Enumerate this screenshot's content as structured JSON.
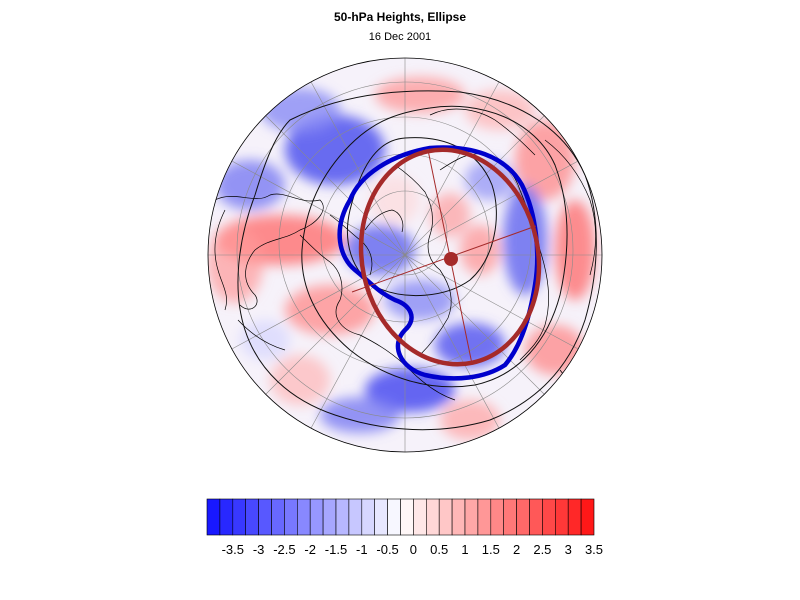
{
  "title": "50-hPa Heights, Ellipse",
  "date": "16 Dec 2001",
  "colorbar": {
    "labels": [
      "-3.5",
      "-3",
      "-2.5",
      "-2",
      "-1.5",
      "-1",
      "-0.5",
      "0",
      "0.5",
      "1",
      "1.5",
      "2",
      "2.5",
      "3",
      "3.5"
    ],
    "low_color": "#1010ff",
    "mid_color": "#ffffff",
    "high_color": "#ff1010",
    "n_bins": 30
  },
  "overlay": {
    "vortex_edge_color": "#0000cc",
    "ellipse_color": "#a52a2a"
  }
}
